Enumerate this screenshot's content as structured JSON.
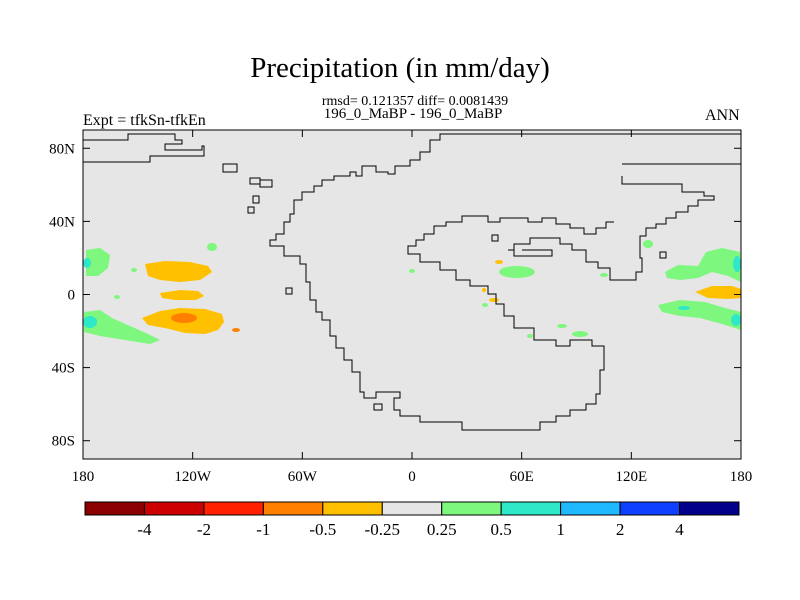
{
  "chart_data": {
    "type": "heatmap",
    "title": "Precipitation (in mm/day)",
    "stats": "rmsd= 0.121357 diff= 0.0081439",
    "subtitle": "196_0_MaBP - 196_0_MaBP",
    "left_label": "Expt = tfkSn-tfkEn",
    "right_label": "ANN",
    "x_axis": {
      "range": [
        -180,
        180
      ],
      "ticks": [
        -180,
        -120,
        -60,
        0,
        60,
        120,
        180
      ],
      "tick_labels": [
        "180",
        "120W",
        "60W",
        "0",
        "60E",
        "120E",
        "180"
      ]
    },
    "y_axis": {
      "range": [
        -90,
        90
      ],
      "ticks": [
        80,
        40,
        0,
        -40,
        -80
      ],
      "tick_labels": [
        "80N",
        "40N",
        "0",
        "40S",
        "80S"
      ]
    },
    "background_color": "#e6e6e6",
    "colorbar": {
      "colors": [
        "#8b0000",
        "#cc0000",
        "#ff2000",
        "#ff7f00",
        "#ffc000",
        "#e6e6e6",
        "#7ef77e",
        "#2ee8c8",
        "#20b8ff",
        "#1040ff",
        "#00008b"
      ],
      "labels": [
        "-4",
        "-2",
        "-1",
        "-0.5",
        "-0.25",
        "0.25",
        "0.5",
        "1",
        "2",
        "4"
      ]
    },
    "features": [
      {
        "name": "wpac-north-orange",
        "level": "-0.25 to -0.5",
        "color": "#ffc000",
        "center_lon": -135,
        "center_lat": 13
      },
      {
        "name": "wpac-equator-orange",
        "level": "-0.25 to -0.5",
        "color": "#ffc000",
        "center_lon": -131,
        "center_lat": 1
      },
      {
        "name": "wpac-south-orange",
        "level": "-0.25 to -0.5",
        "color": "#ffc000",
        "center_lon": -130,
        "center_lat": -13
      },
      {
        "name": "wpac-south-red",
        "level": "-0.5 to -1",
        "color": "#ff7f00",
        "center_lon": -132,
        "center_lat": -12
      },
      {
        "name": "west-green-north",
        "level": "0.25 to 0.5",
        "color": "#7ef77e",
        "center_lon": -172,
        "center_lat": 17
      },
      {
        "name": "west-green-south",
        "level": "0.25 to 0.5",
        "color": "#7ef77e",
        "center_lon": -165,
        "center_lat": -17
      },
      {
        "name": "east-green-north",
        "level": "0.25 to 0.5",
        "color": "#7ef77e",
        "center_lon": 165,
        "center_lat": 17
      },
      {
        "name": "east-green-south",
        "level": "0.25 to 0.5",
        "color": "#7ef77e",
        "center_lon": 155,
        "center_lat": -10
      },
      {
        "name": "east-orange",
        "level": "-0.25 to -0.5",
        "color": "#ffc000",
        "center_lon": 170,
        "center_lat": 2
      },
      {
        "name": "mid-green",
        "level": "0.25 to 0.5",
        "color": "#7ef77e",
        "center_lon": 57,
        "center_lat": 12
      }
    ]
  }
}
